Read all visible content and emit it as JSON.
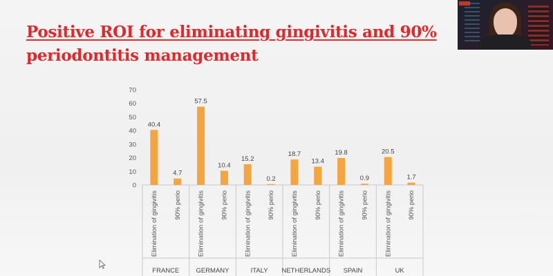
{
  "colors": {
    "accent": "#e2282b",
    "bar": "#f5a540",
    "axis": "#c8c8c8"
  },
  "slide": {
    "title_line1": "Positive ROI for eliminating gingivitis and 90%",
    "title_line2": "periodontitis management"
  },
  "webcam": {
    "icon": "presenter-video-thumbnail"
  },
  "chart_data": {
    "type": "bar",
    "title": "",
    "xlabel": "",
    "ylabel": "",
    "ylim": [
      0,
      70
    ],
    "yticks": [
      0,
      10,
      20,
      30,
      40,
      50,
      60,
      70
    ],
    "grid": false,
    "legend": "none",
    "groups": [
      {
        "name": "FRANCE",
        "categories": [
          "Elimination of gingivitis",
          "90% perio"
        ],
        "values": [
          40.4,
          4.7
        ]
      },
      {
        "name": "GERMANY",
        "categories": [
          "Elimination of gingivitis",
          "90% perio"
        ],
        "values": [
          57.5,
          10.4
        ]
      },
      {
        "name": "ITALY",
        "categories": [
          "Elimination of gingivitis",
          "90% perio"
        ],
        "values": [
          15.2,
          0.2
        ]
      },
      {
        "name": "NETHERLANDS",
        "categories": [
          "Elimination of gingivitis",
          "90% perio"
        ],
        "values": [
          18.7,
          13.4
        ]
      },
      {
        "name": "SPAIN",
        "categories": [
          "Elimination of gingivitis",
          "90% perio"
        ],
        "values": [
          19.8,
          0.9
        ]
      },
      {
        "name": "UK",
        "categories": [
          "Elimination of gingivitis",
          "90% perio"
        ],
        "values": [
          20.5,
          1.7
        ]
      }
    ]
  }
}
